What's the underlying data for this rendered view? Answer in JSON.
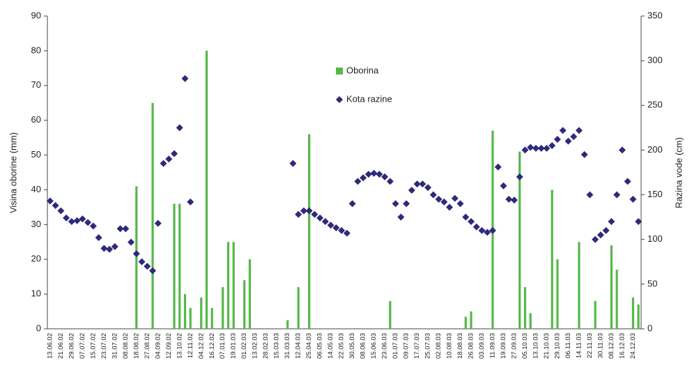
{
  "chart_data": {
    "type": "bar",
    "y_label": "Visina oborine (mm)",
    "y2_label": "Razina vode (cm)",
    "ylim": [
      0,
      90
    ],
    "yticks": [
      0,
      10,
      20,
      30,
      40,
      50,
      60,
      70,
      80,
      90
    ],
    "y2lim": [
      0,
      350
    ],
    "y2ticks": [
      0,
      50,
      100,
      150,
      200,
      250,
      300,
      350
    ],
    "categories": [
      "13.06.02",
      null,
      "21.06.02",
      null,
      "29.06.02",
      null,
      "07.07.02",
      null,
      "15.07.02",
      null,
      "23.07.02",
      null,
      "31.07.02",
      null,
      "08.08.02",
      null,
      "18.08.02",
      null,
      "27.08.02",
      null,
      "04.09.02",
      null,
      "12.09.02",
      null,
      "13.10.02",
      null,
      "12.11.02",
      null,
      "04.12.02",
      null,
      "16.12.02",
      null,
      "07.01.03",
      null,
      "19.01.03",
      null,
      "01.02.03",
      null,
      "13.02.03",
      null,
      "28.02.03",
      null,
      "15.03.03",
      null,
      "31.03.03",
      null,
      "12.04.03",
      null,
      "25.04.03",
      null,
      "06.05.03",
      null,
      "14.05.03",
      null,
      "22.05.03",
      null,
      "30.05.03",
      null,
      "08.06.03",
      null,
      "15.06.03",
      null,
      "23.06.03",
      null,
      "01.07.03",
      null,
      "09.07.03",
      null,
      "17.07.03",
      null,
      "25.07.03",
      null,
      "02.08.03",
      null,
      "10.08.03",
      null,
      "18.08.03",
      null,
      "26.08.03",
      null,
      "03.09.03",
      null,
      "11.09.03",
      null,
      "19.09.03",
      null,
      "27.09.03",
      null,
      "05.10.03",
      null,
      "13.10.03",
      null,
      "21.10.03",
      null,
      "29.10.03",
      null,
      "06.11.03",
      null,
      "14.11.03",
      null,
      "22.11.03",
      null,
      "30.11.03",
      null,
      "08.12.03",
      null,
      "16.12.03",
      null,
      "24.12.03",
      null
    ],
    "series": [
      {
        "name": "Oborina",
        "type": "bar",
        "color": "#55b848",
        "values": [
          0,
          0,
          0,
          0,
          0,
          0,
          0,
          0,
          0,
          0,
          0,
          0,
          0,
          0,
          0,
          0,
          41,
          0,
          0,
          65,
          0,
          0,
          0,
          36,
          36,
          10,
          6,
          0,
          9,
          80,
          6,
          0,
          12,
          25,
          25,
          0,
          14,
          20,
          0,
          0,
          0,
          0,
          0,
          0,
          2.5,
          0,
          12,
          0,
          56,
          0,
          0,
          0,
          0,
          0,
          0,
          0,
          0,
          0,
          0,
          0,
          0,
          0,
          0,
          8,
          0,
          0,
          0,
          0,
          0,
          0,
          0,
          0,
          0,
          0,
          0,
          0,
          0,
          3.5,
          5,
          0,
          0,
          0,
          57,
          0,
          0,
          0,
          0,
          51,
          12,
          4.5,
          0,
          0,
          0,
          40,
          20,
          0,
          0,
          0,
          25,
          0,
          0,
          8,
          0,
          0,
          24,
          17,
          0,
          0,
          9,
          7
        ]
      },
      {
        "name": "Kota razine",
        "type": "scatter",
        "axis": "y2",
        "color": "#2e2a7a",
        "values": [
          143,
          138,
          132,
          124,
          120,
          121,
          123,
          119,
          115,
          102,
          90,
          89,
          92,
          112,
          112,
          97,
          84,
          75,
          70,
          65,
          118,
          185,
          190,
          196,
          225,
          280,
          142,
          null,
          null,
          null,
          null,
          null,
          null,
          null,
          null,
          null,
          null,
          null,
          null,
          null,
          null,
          null,
          null,
          null,
          null,
          185,
          128,
          132,
          132,
          128,
          124,
          120,
          116,
          113,
          110,
          107,
          140,
          165,
          169,
          173,
          174,
          173,
          170,
          165,
          140,
          125,
          140,
          155,
          162,
          162,
          158,
          150,
          145,
          142,
          136,
          146,
          140,
          125,
          120,
          114,
          110,
          108,
          110,
          181,
          160,
          145,
          144,
          170,
          200,
          203,
          202,
          202,
          202,
          205,
          212,
          222,
          210,
          215,
          222,
          195,
          150,
          100,
          105,
          110,
          120,
          150,
          200,
          165,
          145,
          120
        ]
      }
    ]
  }
}
